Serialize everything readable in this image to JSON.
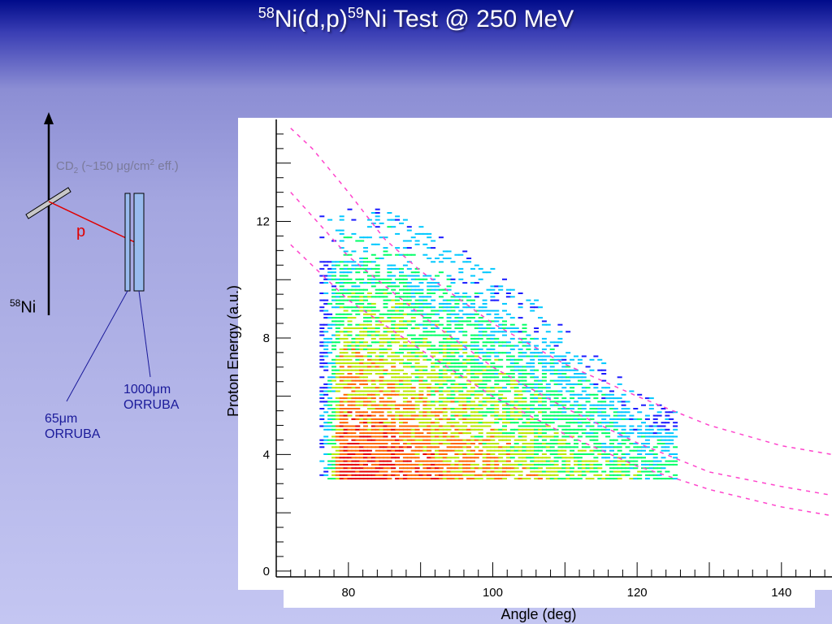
{
  "slide": {
    "title_a": "58",
    "title_b": "Ni(d,p)",
    "title_c": "59",
    "title_d": "Ni Test @ 250 MeV"
  },
  "diagram": {
    "target_label": "CD",
    "target_sub": "2",
    "target_rest": " (~150 μg/cm",
    "target_sup": "2",
    "target_end": " eff.)",
    "proton_label": "p",
    "beam_mass": "58",
    "beam_element": "Ni",
    "det1_line1": "1000μm",
    "det1_line2": "ORRUBA",
    "det2_line1": "65μm",
    "det2_line2": "ORRUBA",
    "colors": {
      "proton_arrow": "#e00000",
      "target_text": "#7a7a9a",
      "detector_text": "#1a1a9a",
      "detector_fill": "#99bbee"
    }
  },
  "chart_data": {
    "type": "heatmap",
    "xlabel": "Angle (deg)",
    "ylabel": "Proton Energy (a.u.)",
    "xlim": [
      70,
      147
    ],
    "ylim": [
      -0.2,
      15.5
    ],
    "xticks": [
      80,
      100,
      120,
      140
    ],
    "yticks": [
      0,
      4,
      8,
      12
    ],
    "kinematic_curves": [
      {
        "points": [
          [
            72,
            15.2
          ],
          [
            75,
            14.5
          ],
          [
            80,
            13.0
          ],
          [
            85,
            11.4
          ],
          [
            90,
            10.3
          ],
          [
            100,
            8.5
          ],
          [
            110,
            7.1
          ],
          [
            120,
            6.0
          ],
          [
            130,
            5.0
          ],
          [
            140,
            4.3
          ],
          [
            147,
            4.0
          ]
        ]
      },
      {
        "points": [
          [
            72,
            13.0
          ],
          [
            80,
            10.8
          ],
          [
            90,
            8.8
          ],
          [
            100,
            7.0
          ],
          [
            110,
            5.6
          ],
          [
            120,
            4.4
          ],
          [
            130,
            3.4
          ],
          [
            140,
            2.9
          ],
          [
            147,
            2.6
          ]
        ]
      },
      {
        "points": [
          [
            72,
            11.2
          ],
          [
            80,
            9.3
          ],
          [
            90,
            7.6
          ],
          [
            100,
            6.0
          ],
          [
            110,
            4.7
          ],
          [
            120,
            3.6
          ],
          [
            130,
            2.8
          ],
          [
            140,
            2.2
          ],
          [
            147,
            1.9
          ]
        ]
      }
    ],
    "heatmap": {
      "x_range": [
        76,
        125
      ],
      "y_min": 3.2,
      "upper_edge": [
        [
          78,
          12.5
        ],
        [
          85,
          12.5
        ],
        [
          95,
          11.2
        ],
        [
          105,
          9.5
        ],
        [
          110,
          8.3
        ],
        [
          115,
          7.2
        ],
        [
          120,
          6.2
        ],
        [
          125,
          5.7
        ]
      ],
      "colorscale": [
        "#1a1aff",
        "#00c8ff",
        "#00ff66",
        "#b8e800",
        "#ff6600",
        "#e60000"
      ]
    },
    "colors": {
      "curve": "#ff44cc"
    }
  }
}
